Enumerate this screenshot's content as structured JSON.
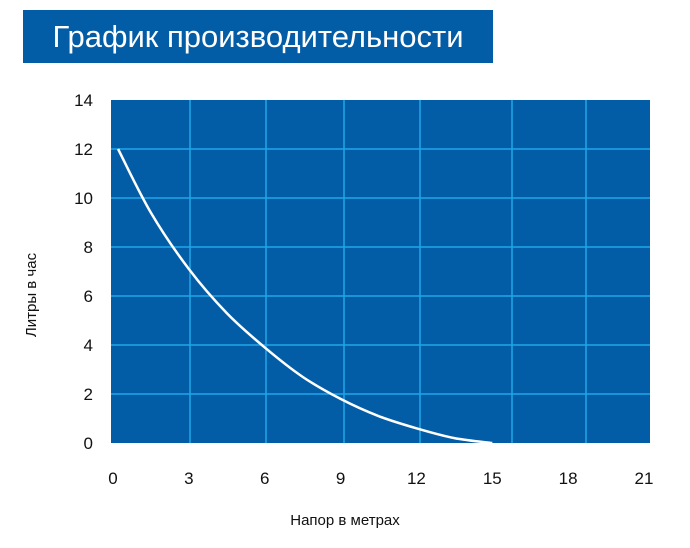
{
  "title": "График производительности",
  "chart_data": {
    "type": "line",
    "title": "График производительности",
    "xlabel": "Напор в метрах",
    "ylabel": "Литры в час",
    "xlim": [
      0,
      21
    ],
    "ylim": [
      0,
      14
    ],
    "x_ticks": [
      "0",
      "3",
      "6",
      "9",
      "12",
      "15",
      "18",
      "21"
    ],
    "y_ticks": [
      "0",
      "2",
      "4",
      "6",
      "8",
      "10",
      "12",
      "14"
    ],
    "grid": true,
    "series": [
      {
        "x": [
          0.2,
          1.5,
          3,
          4.5,
          6,
          7.5,
          9,
          10.5,
          12,
          13.5,
          15
        ],
        "y": [
          12,
          9.4,
          7.1,
          5.3,
          3.9,
          2.7,
          1.8,
          1.1,
          0.6,
          0.2,
          0
        ]
      }
    ],
    "colors": {
      "plot_background": "#035ca6",
      "grid": "#1fa6e8",
      "line": "#ffffff"
    }
  }
}
